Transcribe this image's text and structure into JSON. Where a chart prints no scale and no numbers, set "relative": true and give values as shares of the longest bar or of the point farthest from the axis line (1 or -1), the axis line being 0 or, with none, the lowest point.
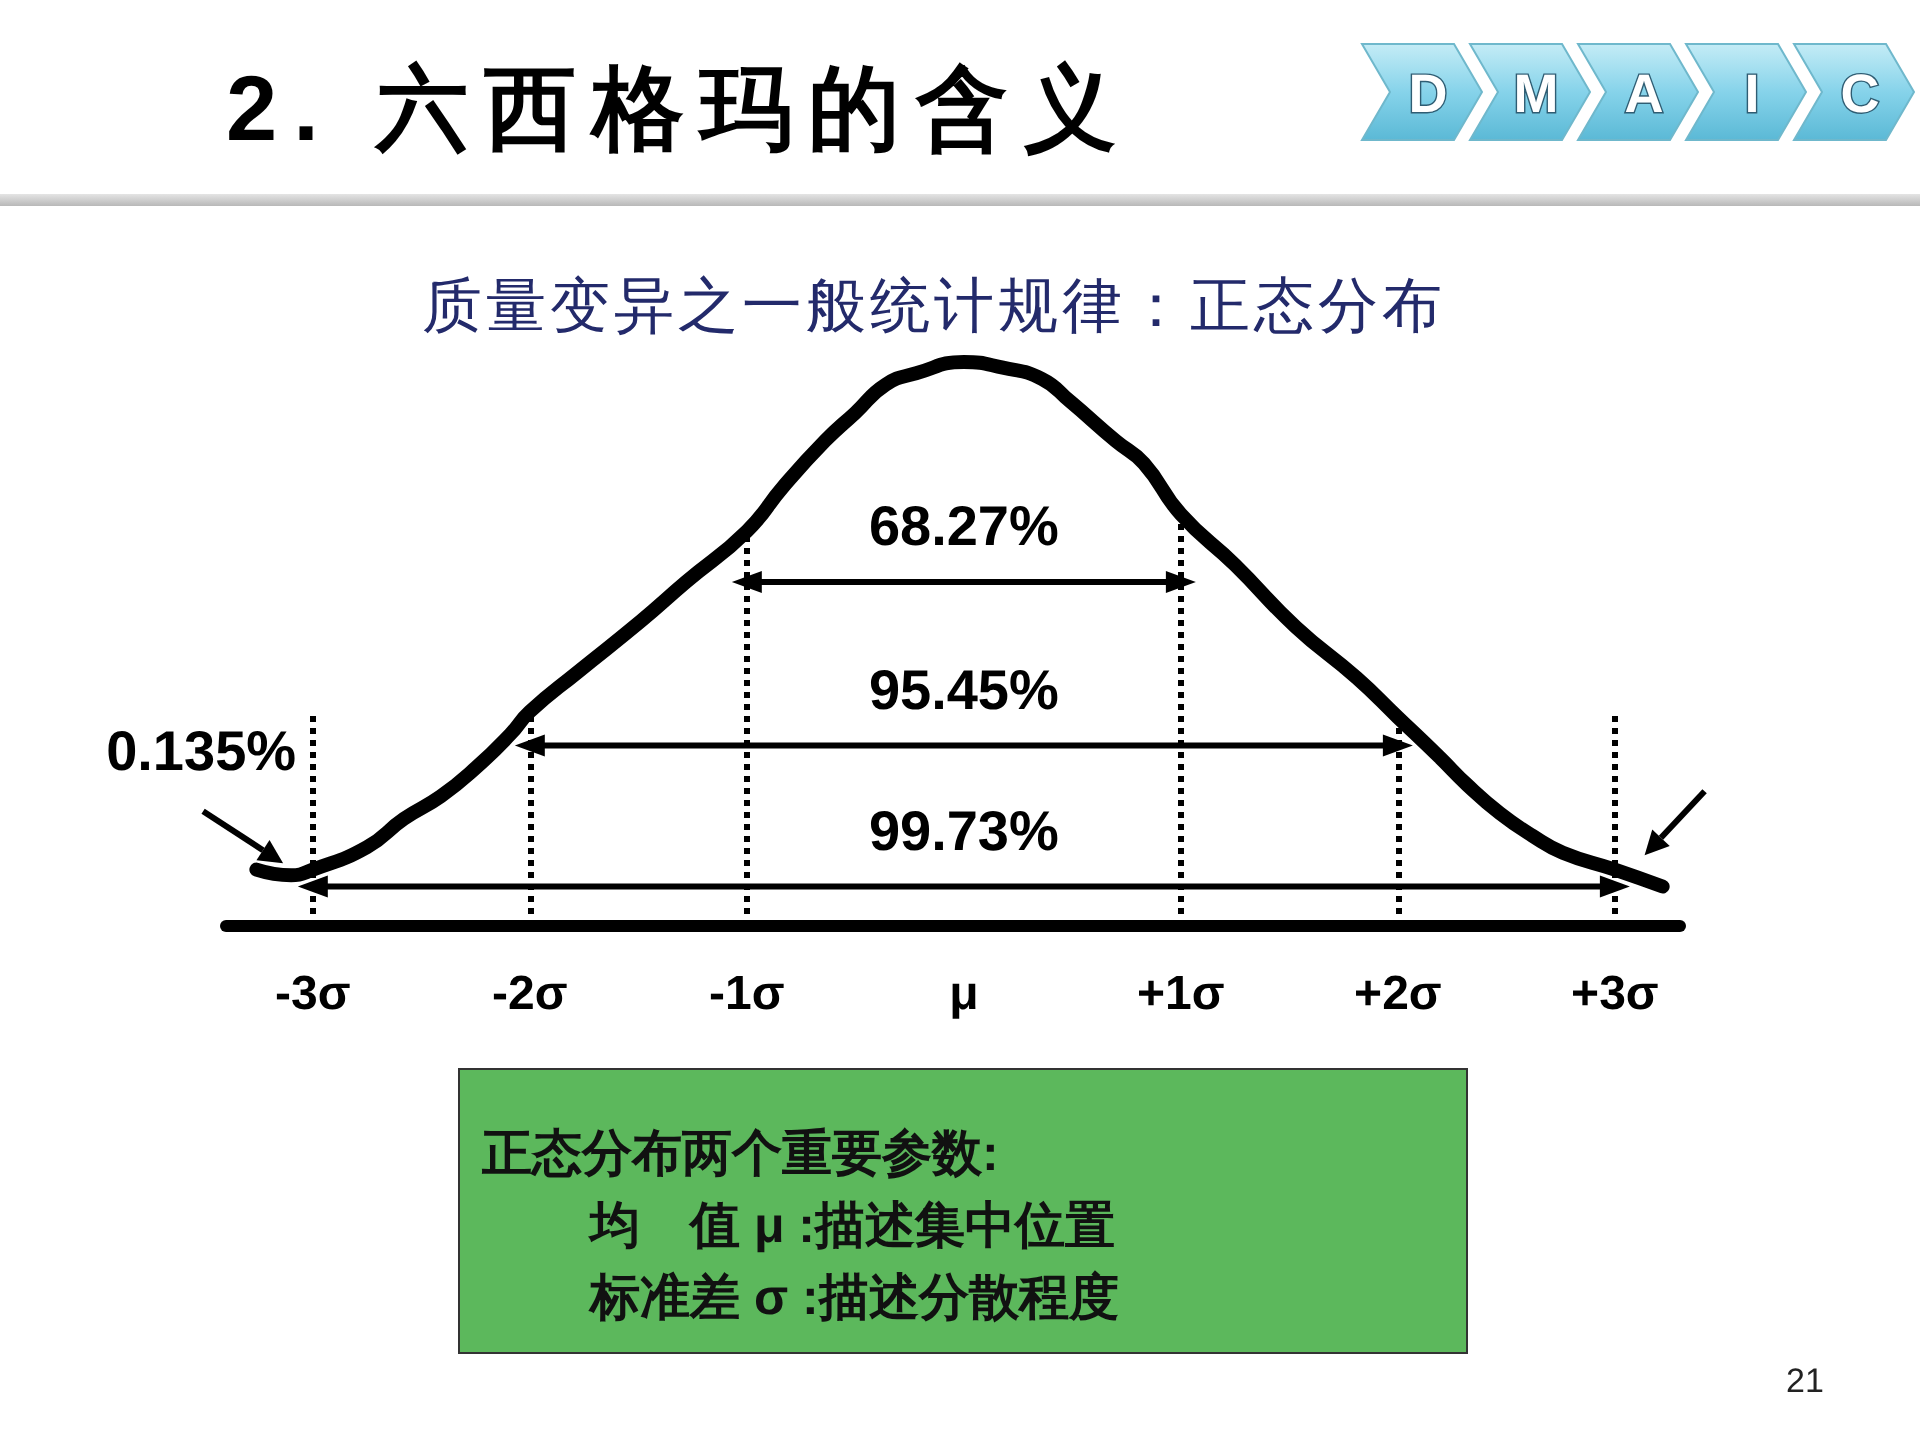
{
  "chart_data": {
    "type": "line",
    "title": "2. 六西格玛的含义",
    "subtitle": "质量变异之一般统计规律：正态分布",
    "relative": true,
    "series": [
      {
        "color": "#000000",
        "x": [
          -3.26,
          -3.1,
          -3,
          -2.75,
          -2.58,
          -2.41,
          -2.25,
          -2.09,
          -2,
          -1.78,
          -1.49,
          -1.28,
          -1,
          -0.83,
          -0.64,
          -0.5,
          -0.36,
          -0.22,
          0,
          0.18,
          0.36,
          0.49,
          0.7,
          0.83,
          1,
          1.25,
          1.53,
          1.81,
          2,
          2.19,
          2.32,
          2.47,
          2.62,
          2.76,
          3,
          3.22
        ],
        "values": [
          0.1,
          0.09,
          0.1,
          0.14,
          0.19,
          0.23,
          0.28,
          0.34,
          0.38,
          0.45,
          0.54,
          0.61,
          0.7,
          0.78,
          0.86,
          0.91,
          0.96,
          0.98,
          1,
          0.99,
          0.97,
          0.93,
          0.86,
          0.82,
          0.73,
          0.64,
          0.53,
          0.44,
          0.37,
          0.3,
          0.25,
          0.2,
          0.16,
          0.13,
          0.1,
          0.07
        ]
      },
      {
        "type": "line",
        "name": "68.27%",
        "color": "#000000",
        "marker": "triangle",
        "x": [
          -1,
          1
        ],
        "values": [
          0.61,
          0.61
        ]
      },
      {
        "type": "line",
        "name": "95.45%",
        "color": "#000000",
        "marker": "triangle",
        "x": [
          -2,
          2
        ],
        "values": [
          0.32,
          0.32
        ]
      },
      {
        "type": "line",
        "name": "99.73%",
        "color": "#000000",
        "marker": "triangle",
        "x": [
          -3,
          3
        ],
        "values": [
          0.07,
          0.07
        ]
      }
    ],
    "xlim": [
      -3.4,
      3.3
    ],
    "xticks": [
      {
        "value": -3,
        "label": "-3σ"
      },
      {
        "value": -2,
        "label": "-2σ"
      },
      {
        "value": -1,
        "label": "-1σ"
      },
      {
        "value": 0,
        "label": "μ"
      },
      {
        "value": 1,
        "label": "+1σ"
      },
      {
        "value": 2,
        "label": "+2σ"
      },
      {
        "value": 3,
        "label": "+3σ"
      }
    ],
    "ref_lines": [
      {
        "axis": "x",
        "value": -3,
        "color": "#000000",
        "line_style": "dotted"
      },
      {
        "axis": "x",
        "value": -2,
        "color": "#000000",
        "line_style": "dotted"
      },
      {
        "axis": "x",
        "value": -1,
        "color": "#000000",
        "line_style": "dotted"
      },
      {
        "axis": "x",
        "value": 1,
        "color": "#000000",
        "line_style": "dotted"
      },
      {
        "axis": "x",
        "value": 2,
        "color": "#000000",
        "line_style": "dotted"
      },
      {
        "axis": "x",
        "value": 3,
        "color": "#000000",
        "line_style": "dotted"
      }
    ],
    "annotations": [
      {
        "text": "0.135%",
        "x": -3.1,
        "y": 0.09
      },
      "正态分布两个重要参数:",
      "均　值 μ :描述集中位置",
      "标准差 σ :描述分散程度",
      "21",
      "D",
      "M",
      "A",
      "I",
      "C"
    ]
  }
}
